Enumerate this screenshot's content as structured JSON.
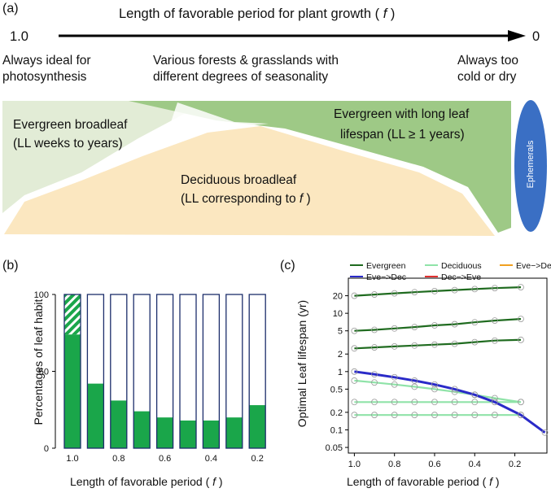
{
  "panel_a": {
    "label": "(a)",
    "title_text": "Length of favorable period for plant growth (",
    "title_var": "f",
    "title_close": ")",
    "axis_left": "1.0",
    "axis_right": "0",
    "desc_left_1": "Always ideal for",
    "desc_left_2": "photosynthesis",
    "desc_mid_1": "Various forests & grasslands with",
    "desc_mid_2": "different degrees of seasonality",
    "desc_right_1": "Always too",
    "desc_right_2": "cold or dry",
    "evergreen_broadleaf_1": "Evergreen broadleaf",
    "evergreen_broadleaf_2": "(LL weeks to years)",
    "evergreen_long_1": "Evergreen with long leaf",
    "evergreen_long_2": "lifespan (LL ≥ 1 years)",
    "deciduous_1": "Deciduous broadleaf",
    "deciduous_2_text": "(LL corresponding to",
    "deciduous_2_var": "f",
    "deciduous_2_close": ")",
    "ephemerals": "Ephemerals",
    "colors": {
      "evergreen_broadleaf": "#e2ecd6",
      "evergreen_long": "#9ec986",
      "deciduous": "#fbe7c0",
      "ephemerals": "#3a6fc4"
    }
  },
  "panel_b": {
    "label": "(b)",
    "ylabel": "Percentages of leaf habit",
    "xlabel_text": "Length of favorable period (",
    "xlabel_var": "f",
    "xlabel_close": ")",
    "bar_color": "#1aa64a",
    "frame_color": "#1c2e6b"
  },
  "panel_c": {
    "label": "(c)",
    "ylabel": "Optimal Leaf lifespan (yr)",
    "xlabel_text": "Length of favorable period (",
    "xlabel_var": "f",
    "xlabel_close": ")",
    "legend": [
      {
        "name": "Evergreen",
        "color": "#1f6b1f"
      },
      {
        "name": "Deciduous",
        "color": "#8fe3a8"
      },
      {
        "name": "Eve−>Dec−>Eve",
        "color": "#f0a020"
      },
      {
        "name": "Eve−>Dec",
        "color": "#2a2ac8"
      },
      {
        "name": "Dec−>Eve",
        "color": "#e03030"
      }
    ]
  },
  "chart_data": [
    {
      "type": "bar",
      "title": "",
      "ylabel": "Percentages of leaf habit",
      "xlabel": "Length of favorable period ( f )",
      "ylim": [
        0,
        100
      ],
      "yticks": [
        "0",
        "50",
        "100"
      ],
      "xticks": [
        "1.0",
        "0.8",
        "0.6",
        "0.4",
        "0.2"
      ],
      "categories": [
        "1.0",
        "0.9",
        "0.8",
        "0.7",
        "0.6",
        "0.5",
        "0.4",
        "0.3",
        "0.2"
      ],
      "values": [
        74,
        42,
        31,
        24,
        20,
        18,
        18,
        20,
        28
      ],
      "hatched_top": [
        26,
        0,
        0,
        0,
        0,
        0,
        0,
        0,
        0
      ]
    },
    {
      "type": "line",
      "title": "",
      "ylabel": "Optimal Leaf lifespan (yr)",
      "xlabel": "Length of favorable period ( f )",
      "x_reversed": true,
      "xlim": [
        1.03,
        0.04
      ],
      "ylim": [
        0.04,
        40
      ],
      "yscale": "log",
      "xticks": [
        "1.0",
        "0.8",
        "0.6",
        "0.4",
        "0.2"
      ],
      "yticks": [
        "0.05",
        "0.1",
        "0.2",
        "0.5",
        "1",
        "2",
        "5",
        "10",
        "20"
      ],
      "x": [
        1.0,
        0.9,
        0.8,
        0.7,
        0.6,
        0.5,
        0.4,
        0.3,
        0.17,
        0.05
      ],
      "series": [
        {
          "name": "Eve−>Dec",
          "values": [
            1.0,
            0.9,
            0.8,
            0.7,
            0.6,
            0.5,
            0.4,
            0.3,
            0.18,
            0.09
          ]
        },
        {
          "name": "Evergreen",
          "values": [
            20,
            21,
            22,
            23,
            24,
            25,
            26,
            27,
            28,
            null
          ]
        },
        {
          "name": "Evergreen",
          "values": [
            5,
            5.2,
            5.5,
            5.8,
            6.2,
            6.5,
            7,
            7.5,
            8,
            null
          ]
        },
        {
          "name": "Evergreen",
          "values": [
            2.5,
            2.6,
            2.7,
            2.8,
            2.9,
            3,
            3.2,
            3.4,
            3.5,
            null
          ]
        },
        {
          "name": "Deciduous",
          "values": [
            0.7,
            0.65,
            0.6,
            0.55,
            0.5,
            0.45,
            0.4,
            0.35,
            0.3,
            null
          ]
        },
        {
          "name": "Deciduous",
          "values": [
            0.3,
            0.3,
            0.3,
            0.3,
            0.3,
            0.3,
            0.3,
            0.3,
            0.3,
            null
          ]
        },
        {
          "name": "Deciduous",
          "values": [
            0.18,
            0.18,
            0.18,
            0.18,
            0.18,
            0.18,
            0.18,
            0.18,
            0.18,
            null
          ]
        }
      ]
    }
  ]
}
